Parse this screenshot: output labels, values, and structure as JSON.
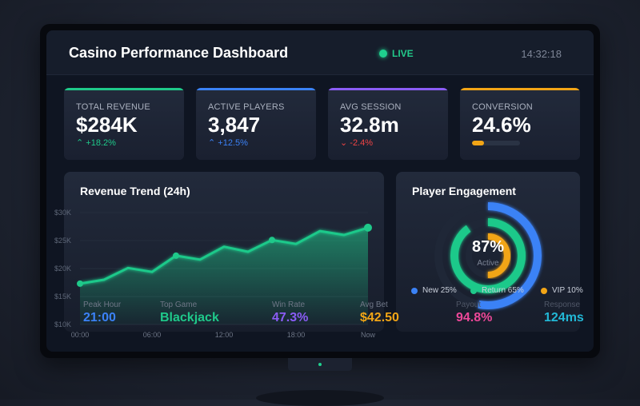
{
  "header": {
    "title": "Casino Performance Dashboard",
    "status": "LIVE",
    "time": "14:32:18"
  },
  "colors": {
    "green": "#1fc98a",
    "blue": "#3b82f6",
    "purple": "#8b5cf6",
    "orange": "#f2a516",
    "red": "#ef4444",
    "pink": "#ec4899",
    "cyan": "#22b8d6"
  },
  "cards": [
    {
      "label": "TOTAL REVENUE",
      "value": "$284K",
      "change": "+18.2%",
      "trend": "up",
      "accent": "#1fc98a"
    },
    {
      "label": "ACTIVE PLAYERS",
      "value": "3,847",
      "change": "+12.5%",
      "trend": "up",
      "accent": "#3b82f6"
    },
    {
      "label": "AVG SESSION",
      "value": "32.8m",
      "change": "-2.4%",
      "trend": "down",
      "accent": "#8b5cf6"
    },
    {
      "label": "CONVERSION",
      "value": "24.6%",
      "progress": 24.6,
      "accent": "#f2a516"
    }
  ],
  "chart_data": {
    "type": "area",
    "title": "Revenue Trend (24h)",
    "x": [
      "00:00",
      "02:00",
      "04:00",
      "06:00",
      "08:00",
      "10:00",
      "12:00",
      "14:00",
      "16:00",
      "18:00",
      "20:00",
      "22:00",
      "Now"
    ],
    "values": [
      17.3,
      18,
      20.1,
      19.4,
      22.3,
      21.6,
      23.9,
      23,
      25.1,
      24.4,
      26.7,
      26,
      27.3
    ],
    "yticks": [
      "$30K",
      "$25K",
      "$20K",
      "$15K",
      "$10K"
    ],
    "xticks": [
      "00:00",
      "06:00",
      "12:00",
      "18:00",
      "Now"
    ],
    "ylim": [
      10,
      30
    ],
    "yunit": "K USD",
    "grid": true
  },
  "engagement": {
    "title": "Player Engagement",
    "center_value": "87%",
    "center_label": "Active",
    "rings": [
      {
        "color": "#3b82f6",
        "fill": 0.53
      },
      {
        "color": "#1fc98a",
        "fill": 0.9
      },
      {
        "color": "#f2a516",
        "fill": 0.5
      }
    ],
    "legend": [
      "New 25%",
      "Return 65%",
      "VIP 10%"
    ]
  },
  "stats": [
    {
      "label": "Peak Hour",
      "value": "21:00",
      "color": "#3b82f6"
    },
    {
      "label": "Top Game",
      "value": "Blackjack",
      "color": "#1fc98a"
    },
    {
      "label": "Win Rate",
      "value": "47.3%",
      "color": "#8b5cf6"
    },
    {
      "label": "Avg Bet",
      "value": "$42.50",
      "color": "#f2a516"
    },
    {
      "label": "Payout",
      "value": "94.8%",
      "color": "#ec4899"
    },
    {
      "label": "Response",
      "value": "124ms",
      "color": "#22b8d6"
    }
  ]
}
